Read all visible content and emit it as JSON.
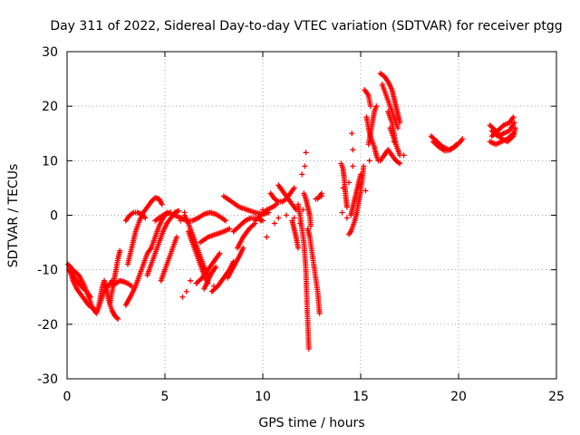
{
  "chart_data": {
    "type": "scatter",
    "title": "Day 311 of 2022, Sidereal Day-to-day VTEC variation (SDTVAR) for receiver ptgg",
    "xlabel": "GPS time / hours",
    "ylabel": "SDTVAR / TECUs",
    "xlim": [
      0,
      25
    ],
    "ylim": [
      -30,
      30
    ],
    "xticks": [
      "0",
      "5",
      "10",
      "15",
      "20",
      "25"
    ],
    "yticks": [
      "-30",
      "-20",
      "-10",
      "0",
      "10",
      "20",
      "30"
    ],
    "grid": true,
    "marker": "+",
    "color": "#ff0000",
    "tracks": [
      [
        [
          0.05,
          -9
        ],
        [
          0.3,
          -10
        ],
        [
          0.6,
          -11
        ],
        [
          0.9,
          -13
        ],
        [
          1.1,
          -15
        ],
        [
          1.3,
          -17
        ],
        [
          1.5,
          -18
        ],
        [
          1.7,
          -16
        ],
        [
          1.9,
          -14
        ],
        [
          2.1,
          -13
        ],
        [
          2.3,
          -12
        ]
      ],
      [
        [
          0.1,
          -10
        ],
        [
          0.4,
          -11.5
        ],
        [
          0.7,
          -13
        ],
        [
          1.0,
          -14
        ],
        [
          1.2,
          -15
        ]
      ],
      [
        [
          0.1,
          -9.5
        ],
        [
          0.3,
          -12
        ],
        [
          0.5,
          -13.5
        ],
        [
          0.7,
          -14.5
        ],
        [
          0.9,
          -15.5
        ],
        [
          1.1,
          -16.5
        ],
        [
          1.3,
          -17
        ],
        [
          1.5,
          -17.5
        ]
      ],
      [
        [
          1.6,
          -17
        ],
        [
          1.7,
          -15
        ],
        [
          1.8,
          -13
        ],
        [
          1.9,
          -12
        ],
        [
          2.0,
          -13.5
        ],
        [
          2.1,
          -15
        ],
        [
          2.2,
          -16.5
        ],
        [
          2.3,
          -17.5
        ],
        [
          2.45,
          -18.5
        ],
        [
          2.6,
          -19
        ]
      ],
      [
        [
          2.2,
          -16
        ],
        [
          2.3,
          -14
        ],
        [
          2.4,
          -12
        ],
        [
          2.5,
          -10
        ],
        [
          2.6,
          -8
        ],
        [
          2.7,
          -6.5
        ]
      ],
      [
        [
          2.3,
          -13
        ],
        [
          2.5,
          -12.5
        ],
        [
          2.7,
          -12
        ],
        [
          2.9,
          -12.2
        ],
        [
          3.1,
          -12.5
        ],
        [
          3.3,
          -13
        ]
      ],
      [
        [
          3.0,
          -16.5
        ],
        [
          3.15,
          -15.5
        ],
        [
          3.3,
          -14.5
        ],
        [
          3.5,
          -13
        ],
        [
          3.7,
          -11
        ],
        [
          3.9,
          -9
        ],
        [
          4.1,
          -7
        ],
        [
          4.3,
          -6
        ]
      ],
      [
        [
          3.1,
          -9
        ],
        [
          3.3,
          -6
        ],
        [
          3.5,
          -3
        ],
        [
          3.7,
          -1
        ],
        [
          3.9,
          0.5
        ],
        [
          4.1,
          1.5
        ],
        [
          4.3,
          2.5
        ],
        [
          4.5,
          3.2
        ],
        [
          4.7,
          3
        ],
        [
          4.85,
          2
        ]
      ],
      [
        [
          3.0,
          -1
        ],
        [
          3.2,
          0
        ],
        [
          3.4,
          0.5
        ],
        [
          3.6,
          0.5
        ],
        [
          3.8,
          0.2
        ],
        [
          4.0,
          -0.5
        ]
      ],
      [
        [
          4.1,
          -11
        ],
        [
          4.3,
          -9
        ],
        [
          4.5,
          -7
        ],
        [
          4.7,
          -5
        ],
        [
          4.9,
          -3
        ],
        [
          5.1,
          -1.5
        ],
        [
          5.3,
          -0.5
        ],
        [
          5.5,
          0.5
        ],
        [
          5.7,
          0.8
        ]
      ],
      [
        [
          4.3,
          -6
        ],
        [
          4.5,
          -4
        ],
        [
          4.7,
          -2
        ],
        [
          4.9,
          -0.5
        ],
        [
          5.1,
          0.5
        ]
      ],
      [
        [
          4.5,
          -1
        ],
        [
          4.7,
          -0.5
        ],
        [
          4.9,
          0
        ],
        [
          5.1,
          0.3
        ],
        [
          5.3,
          0.5
        ]
      ],
      [
        [
          4.8,
          -12
        ],
        [
          5.0,
          -10
        ],
        [
          5.2,
          -8
        ],
        [
          5.4,
          -6
        ],
        [
          5.6,
          -4
        ]
      ],
      [
        [
          5.5,
          0
        ],
        [
          5.8,
          -0.5
        ],
        [
          6.1,
          -1
        ],
        [
          6.4,
          -1
        ],
        [
          6.7,
          -0.5
        ],
        [
          7.0,
          0.2
        ],
        [
          7.3,
          0.5
        ],
        [
          7.6,
          0.2
        ],
        [
          7.9,
          -0.5
        ],
        [
          8.1,
          -1
        ]
      ],
      [
        [
          6.0,
          0
        ],
        [
          6.2,
          -1.5
        ],
        [
          6.4,
          -3.5
        ],
        [
          6.6,
          -5.5
        ],
        [
          6.8,
          -7.5
        ],
        [
          7.0,
          -9.5
        ],
        [
          7.2,
          -11
        ]
      ],
      [
        [
          6.2,
          -3
        ],
        [
          6.4,
          -5
        ],
        [
          6.6,
          -7
        ],
        [
          6.8,
          -9
        ],
        [
          7.0,
          -11
        ],
        [
          7.2,
          -12.5
        ]
      ],
      [
        [
          6.6,
          -12.5
        ],
        [
          6.9,
          -11.5
        ],
        [
          7.2,
          -10
        ],
        [
          7.5,
          -8.5
        ],
        [
          7.8,
          -7
        ]
      ],
      [
        [
          7.0,
          -13.5
        ],
        [
          7.2,
          -12
        ],
        [
          7.4,
          -10.5
        ],
        [
          7.6,
          -9.5
        ]
      ],
      [
        [
          6.8,
          -5
        ],
        [
          7.2,
          -4
        ],
        [
          7.6,
          -3.5
        ],
        [
          8.0,
          -3
        ],
        [
          8.3,
          -2.5
        ]
      ],
      [
        [
          7.4,
          -14
        ],
        [
          7.7,
          -13
        ],
        [
          8.0,
          -11.5
        ],
        [
          8.3,
          -10
        ],
        [
          8.5,
          -8.5
        ]
      ],
      [
        [
          8.2,
          -11.5
        ],
        [
          8.5,
          -9.5
        ],
        [
          8.8,
          -7.5
        ],
        [
          9.0,
          -6
        ]
      ],
      [
        [
          8.7,
          -6
        ],
        [
          9.0,
          -4
        ],
        [
          9.3,
          -2.5
        ],
        [
          9.6,
          -1.5
        ]
      ],
      [
        [
          8.5,
          -3
        ],
        [
          8.8,
          -2
        ],
        [
          9.1,
          -1
        ],
        [
          9.4,
          -0.5
        ],
        [
          9.7,
          -0.5
        ],
        [
          10.0,
          -1
        ]
      ],
      [
        [
          8.0,
          3.5
        ],
        [
          8.4,
          2.5
        ],
        [
          8.8,
          1.5
        ],
        [
          9.2,
          1
        ],
        [
          9.6,
          0.5
        ],
        [
          10.0,
          0.2
        ],
        [
          10.3,
          0.5
        ]
      ],
      [
        [
          9.6,
          -1
        ],
        [
          9.9,
          0
        ],
        [
          10.2,
          1
        ],
        [
          10.5,
          1.5
        ],
        [
          10.7,
          2
        ]
      ],
      [
        [
          10.4,
          4
        ],
        [
          10.6,
          3
        ],
        [
          10.8,
          2.5
        ],
        [
          11.0,
          2.5
        ],
        [
          11.2,
          3
        ],
        [
          11.4,
          4
        ],
        [
          11.6,
          5
        ]
      ],
      [
        [
          10.8,
          5.5
        ],
        [
          11.0,
          4.5
        ],
        [
          11.2,
          3.5
        ],
        [
          11.4,
          2.5
        ],
        [
          11.6,
          1.5
        ],
        [
          11.7,
          1
        ]
      ],
      [
        [
          11.8,
          2
        ],
        [
          11.9,
          0
        ],
        [
          12.0,
          -2.5
        ],
        [
          12.1,
          -5
        ],
        [
          12.15,
          -7.5
        ],
        [
          12.2,
          -10
        ],
        [
          12.22,
          -12.5
        ],
        [
          12.25,
          -15
        ],
        [
          12.27,
          -17.5
        ],
        [
          12.3,
          -20
        ],
        [
          12.33,
          -22.5
        ],
        [
          12.35,
          -24.5
        ]
      ],
      [
        [
          12.1,
          4
        ],
        [
          12.2,
          3
        ],
        [
          12.3,
          1.5
        ],
        [
          12.4,
          0
        ],
        [
          12.45,
          -2
        ]
      ],
      [
        [
          12.3,
          -2.5
        ],
        [
          12.4,
          -4
        ],
        [
          12.5,
          -6.5
        ],
        [
          12.6,
          -9
        ],
        [
          12.7,
          -11.5
        ],
        [
          12.8,
          -14
        ],
        [
          12.85,
          -16
        ],
        [
          12.9,
          -18
        ]
      ],
      [
        [
          11.5,
          -1
        ],
        [
          11.6,
          -2.5
        ],
        [
          11.7,
          -4
        ],
        [
          11.8,
          -6
        ]
      ],
      [
        [
          12.8,
          3
        ],
        [
          12.9,
          3.5
        ],
        [
          13.0,
          4
        ]
      ],
      [
        [
          14.0,
          9.5
        ],
        [
          14.1,
          8.5
        ],
        [
          14.15,
          7
        ],
        [
          14.2,
          5
        ],
        [
          14.25,
          3
        ],
        [
          14.3,
          1.5
        ]
      ],
      [
        [
          14.4,
          -3.5
        ],
        [
          14.5,
          -3
        ],
        [
          14.6,
          -2
        ],
        [
          14.7,
          -1
        ],
        [
          14.8,
          0.5
        ],
        [
          14.9,
          2.5
        ],
        [
          15.0,
          4.5
        ],
        [
          15.1,
          7
        ],
        [
          15.15,
          9
        ]
      ],
      [
        [
          14.5,
          0
        ],
        [
          14.6,
          1.5
        ],
        [
          14.7,
          3
        ],
        [
          14.8,
          4.5
        ],
        [
          14.9,
          6
        ],
        [
          15.0,
          7.5
        ]
      ],
      [
        [
          15.2,
          23
        ],
        [
          15.4,
          22
        ],
        [
          15.5,
          20
        ]
      ],
      [
        [
          15.3,
          18
        ],
        [
          15.4,
          16
        ],
        [
          15.5,
          14.5
        ],
        [
          15.6,
          13.5
        ],
        [
          15.7,
          12.5
        ],
        [
          15.8,
          11
        ],
        [
          15.9,
          10
        ]
      ],
      [
        [
          15.4,
          13
        ],
        [
          15.5,
          15
        ],
        [
          15.6,
          17
        ],
        [
          15.7,
          19
        ],
        [
          15.8,
          20
        ]
      ],
      [
        [
          16.0,
          26
        ],
        [
          16.2,
          25.5
        ],
        [
          16.4,
          24.5
        ],
        [
          16.6,
          23
        ],
        [
          16.7,
          21.5
        ],
        [
          16.8,
          20
        ],
        [
          16.9,
          18.5
        ],
        [
          17.0,
          17
        ]
      ],
      [
        [
          16.1,
          24
        ],
        [
          16.3,
          22
        ],
        [
          16.5,
          20
        ],
        [
          16.7,
          18
        ],
        [
          16.9,
          16
        ]
      ],
      [
        [
          16.0,
          10
        ],
        [
          16.2,
          11
        ],
        [
          16.4,
          12
        ],
        [
          16.6,
          11
        ],
        [
          16.8,
          10
        ],
        [
          17.0,
          9.5
        ]
      ],
      [
        [
          16.5,
          16
        ],
        [
          16.7,
          14
        ],
        [
          16.9,
          12
        ],
        [
          17.0,
          11
        ]
      ],
      [
        [
          16.4,
          19
        ],
        [
          16.6,
          17
        ],
        [
          16.7,
          15
        ],
        [
          16.8,
          13
        ]
      ],
      [
        [
          18.6,
          14.5
        ],
        [
          18.9,
          13.5
        ],
        [
          19.2,
          12.5
        ],
        [
          19.5,
          12
        ],
        [
          19.8,
          12.5
        ],
        [
          20.1,
          13.5
        ],
        [
          20.2,
          14
        ]
      ],
      [
        [
          18.7,
          13.5
        ],
        [
          19.0,
          12.5
        ],
        [
          19.3,
          11.8
        ],
        [
          19.6,
          12
        ],
        [
          19.9,
          13
        ]
      ],
      [
        [
          21.6,
          16.5
        ],
        [
          21.9,
          15.5
        ],
        [
          22.2,
          14
        ],
        [
          22.5,
          13.5
        ],
        [
          22.8,
          14.5
        ],
        [
          22.9,
          16
        ]
      ],
      [
        [
          21.7,
          14.5
        ],
        [
          22.0,
          15.5
        ],
        [
          22.3,
          16.5
        ],
        [
          22.6,
          17
        ],
        [
          22.8,
          18
        ]
      ],
      [
        [
          21.6,
          13.5
        ],
        [
          21.9,
          13
        ],
        [
          22.2,
          13.5
        ],
        [
          22.5,
          14
        ],
        [
          22.8,
          15
        ]
      ],
      [
        [
          21.7,
          15.5
        ],
        [
          22.0,
          14.5
        ],
        [
          22.3,
          15
        ],
        [
          22.6,
          15.5
        ],
        [
          22.85,
          17
        ]
      ]
    ],
    "points": [
      [
        5.8,
        -1
      ],
      [
        6.0,
        0.5
      ],
      [
        5.9,
        -15
      ],
      [
        6.1,
        -14
      ],
      [
        6.3,
        -12
      ],
      [
        7.5,
        -13
      ],
      [
        9.9,
        -1
      ],
      [
        10.0,
        1
      ],
      [
        10.2,
        -4
      ],
      [
        10.6,
        -1.5
      ],
      [
        10.8,
        -0.5
      ],
      [
        11.2,
        0
      ],
      [
        11.6,
        -0.5
      ],
      [
        11.9,
        -1.5
      ],
      [
        12.0,
        7.5
      ],
      [
        12.15,
        9
      ],
      [
        12.2,
        11.5
      ],
      [
        12.05,
        1
      ],
      [
        12.7,
        3
      ],
      [
        13.0,
        3.5
      ],
      [
        14.05,
        0.5
      ],
      [
        14.3,
        -0.5
      ],
      [
        14.1,
        5
      ],
      [
        14.4,
        6
      ],
      [
        14.6,
        9
      ],
      [
        14.55,
        15
      ],
      [
        14.6,
        12
      ],
      [
        15.25,
        4.5
      ],
      [
        15.45,
        10
      ],
      [
        17.2,
        11
      ],
      [
        16.7,
        13.5
      ]
    ]
  }
}
